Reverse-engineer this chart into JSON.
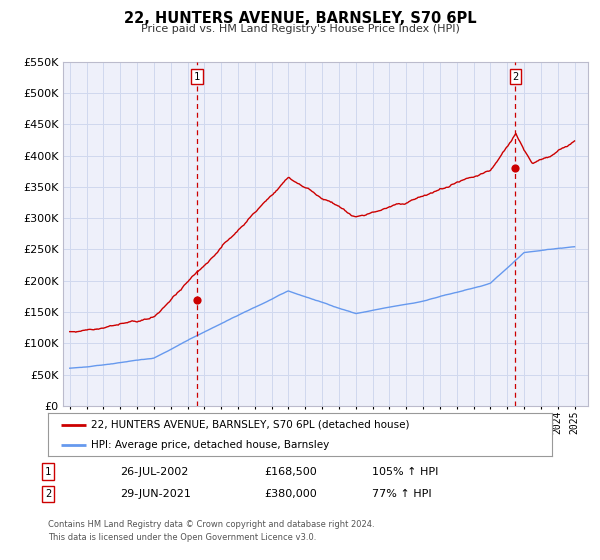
{
  "title": "22, HUNTERS AVENUE, BARNSLEY, S70 6PL",
  "subtitle": "Price paid vs. HM Land Registry's House Price Index (HPI)",
  "legend_line1": "22, HUNTERS AVENUE, BARNSLEY, S70 6PL (detached house)",
  "legend_line2": "HPI: Average price, detached house, Barnsley",
  "sale1_label": "1",
  "sale1_date": "26-JUL-2002",
  "sale1_price": "£168,500",
  "sale1_pct": "105% ↑ HPI",
  "sale2_label": "2",
  "sale2_date": "29-JUN-2021",
  "sale2_price": "£380,000",
  "sale2_pct": "77% ↑ HPI",
  "footer1": "Contains HM Land Registry data © Crown copyright and database right 2024.",
  "footer2": "This data is licensed under the Open Government Licence v3.0.",
  "hpi_color": "#6699ee",
  "price_color": "#cc0000",
  "grid_color": "#d0d8ee",
  "bg_color": "#eef0fa",
  "sale1_x": 2002.57,
  "sale1_y": 168500,
  "sale2_x": 2021.49,
  "sale2_y": 380000,
  "ylim": [
    0,
    550000
  ],
  "xlim_start": 1994.6,
  "xlim_end": 2025.8
}
